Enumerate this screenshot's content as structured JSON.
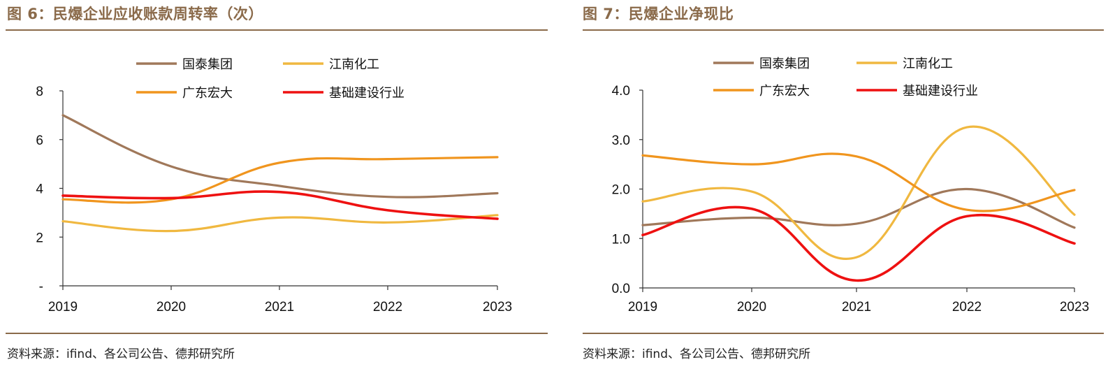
{
  "left": {
    "title": "图 6：民爆企业应收账款周转率（次）",
    "source": "资料来源：ifind、各公司公告、德邦研究所"
  },
  "right": {
    "title": "图 7：民爆企业净现比",
    "source": "资料来源：ifind、各公司公告、德邦研究所"
  },
  "colors": {
    "国泰集团": "#a0785a",
    "江南化工": "#f0b840",
    "广东宏大": "#f0951e",
    "基础建设行业": "#ee1111"
  },
  "chart_data": [
    {
      "type": "line",
      "title": "图 6：民爆企业应收账款周转率（次）",
      "categories": [
        "2019",
        "2020",
        "2021",
        "2022",
        "2023"
      ],
      "ylim": [
        0,
        8
      ],
      "yticks": [
        0,
        2,
        4,
        6,
        8
      ],
      "ytick_labels": [
        "-",
        "2",
        "4",
        "6",
        "8"
      ],
      "smooth": true,
      "legend": [
        "国泰集团",
        "江南化工",
        "广东宏大",
        "基础建设行业"
      ],
      "legend_position": "top",
      "series": [
        {
          "name": "国泰集团",
          "values": [
            7.0,
            4.9,
            4.1,
            3.65,
            3.8
          ]
        },
        {
          "name": "江南化工",
          "values": [
            2.65,
            2.25,
            2.8,
            2.6,
            2.9
          ]
        },
        {
          "name": "广东宏大",
          "values": [
            3.55,
            3.55,
            5.05,
            5.2,
            5.28
          ]
        },
        {
          "name": "基础建设行业",
          "values": [
            3.7,
            3.6,
            3.85,
            3.1,
            2.75
          ]
        }
      ]
    },
    {
      "type": "line",
      "title": "图 7：民爆企业净现比",
      "categories": [
        "2019",
        "2020",
        "2021",
        "2022",
        "2023"
      ],
      "ylim": [
        0,
        4
      ],
      "yticks": [
        0,
        1,
        2,
        3,
        4
      ],
      "ytick_labels": [
        "0.0",
        "1.0",
        "2.0",
        "3.0",
        "4.0"
      ],
      "smooth": true,
      "legend": [
        "国泰集团",
        "江南化工",
        "广东宏大",
        "基础建设行业"
      ],
      "legend_position": "top",
      "series": [
        {
          "name": "国泰集团",
          "values": [
            1.27,
            1.42,
            1.3,
            2.0,
            1.22
          ]
        },
        {
          "name": "江南化工",
          "values": [
            1.75,
            1.95,
            0.62,
            3.25,
            1.48
          ]
        },
        {
          "name": "广东宏大",
          "values": [
            2.68,
            2.5,
            2.66,
            1.58,
            1.98
          ]
        },
        {
          "name": "基础建设行业",
          "values": [
            1.07,
            1.6,
            0.15,
            1.45,
            0.9
          ]
        }
      ]
    }
  ]
}
